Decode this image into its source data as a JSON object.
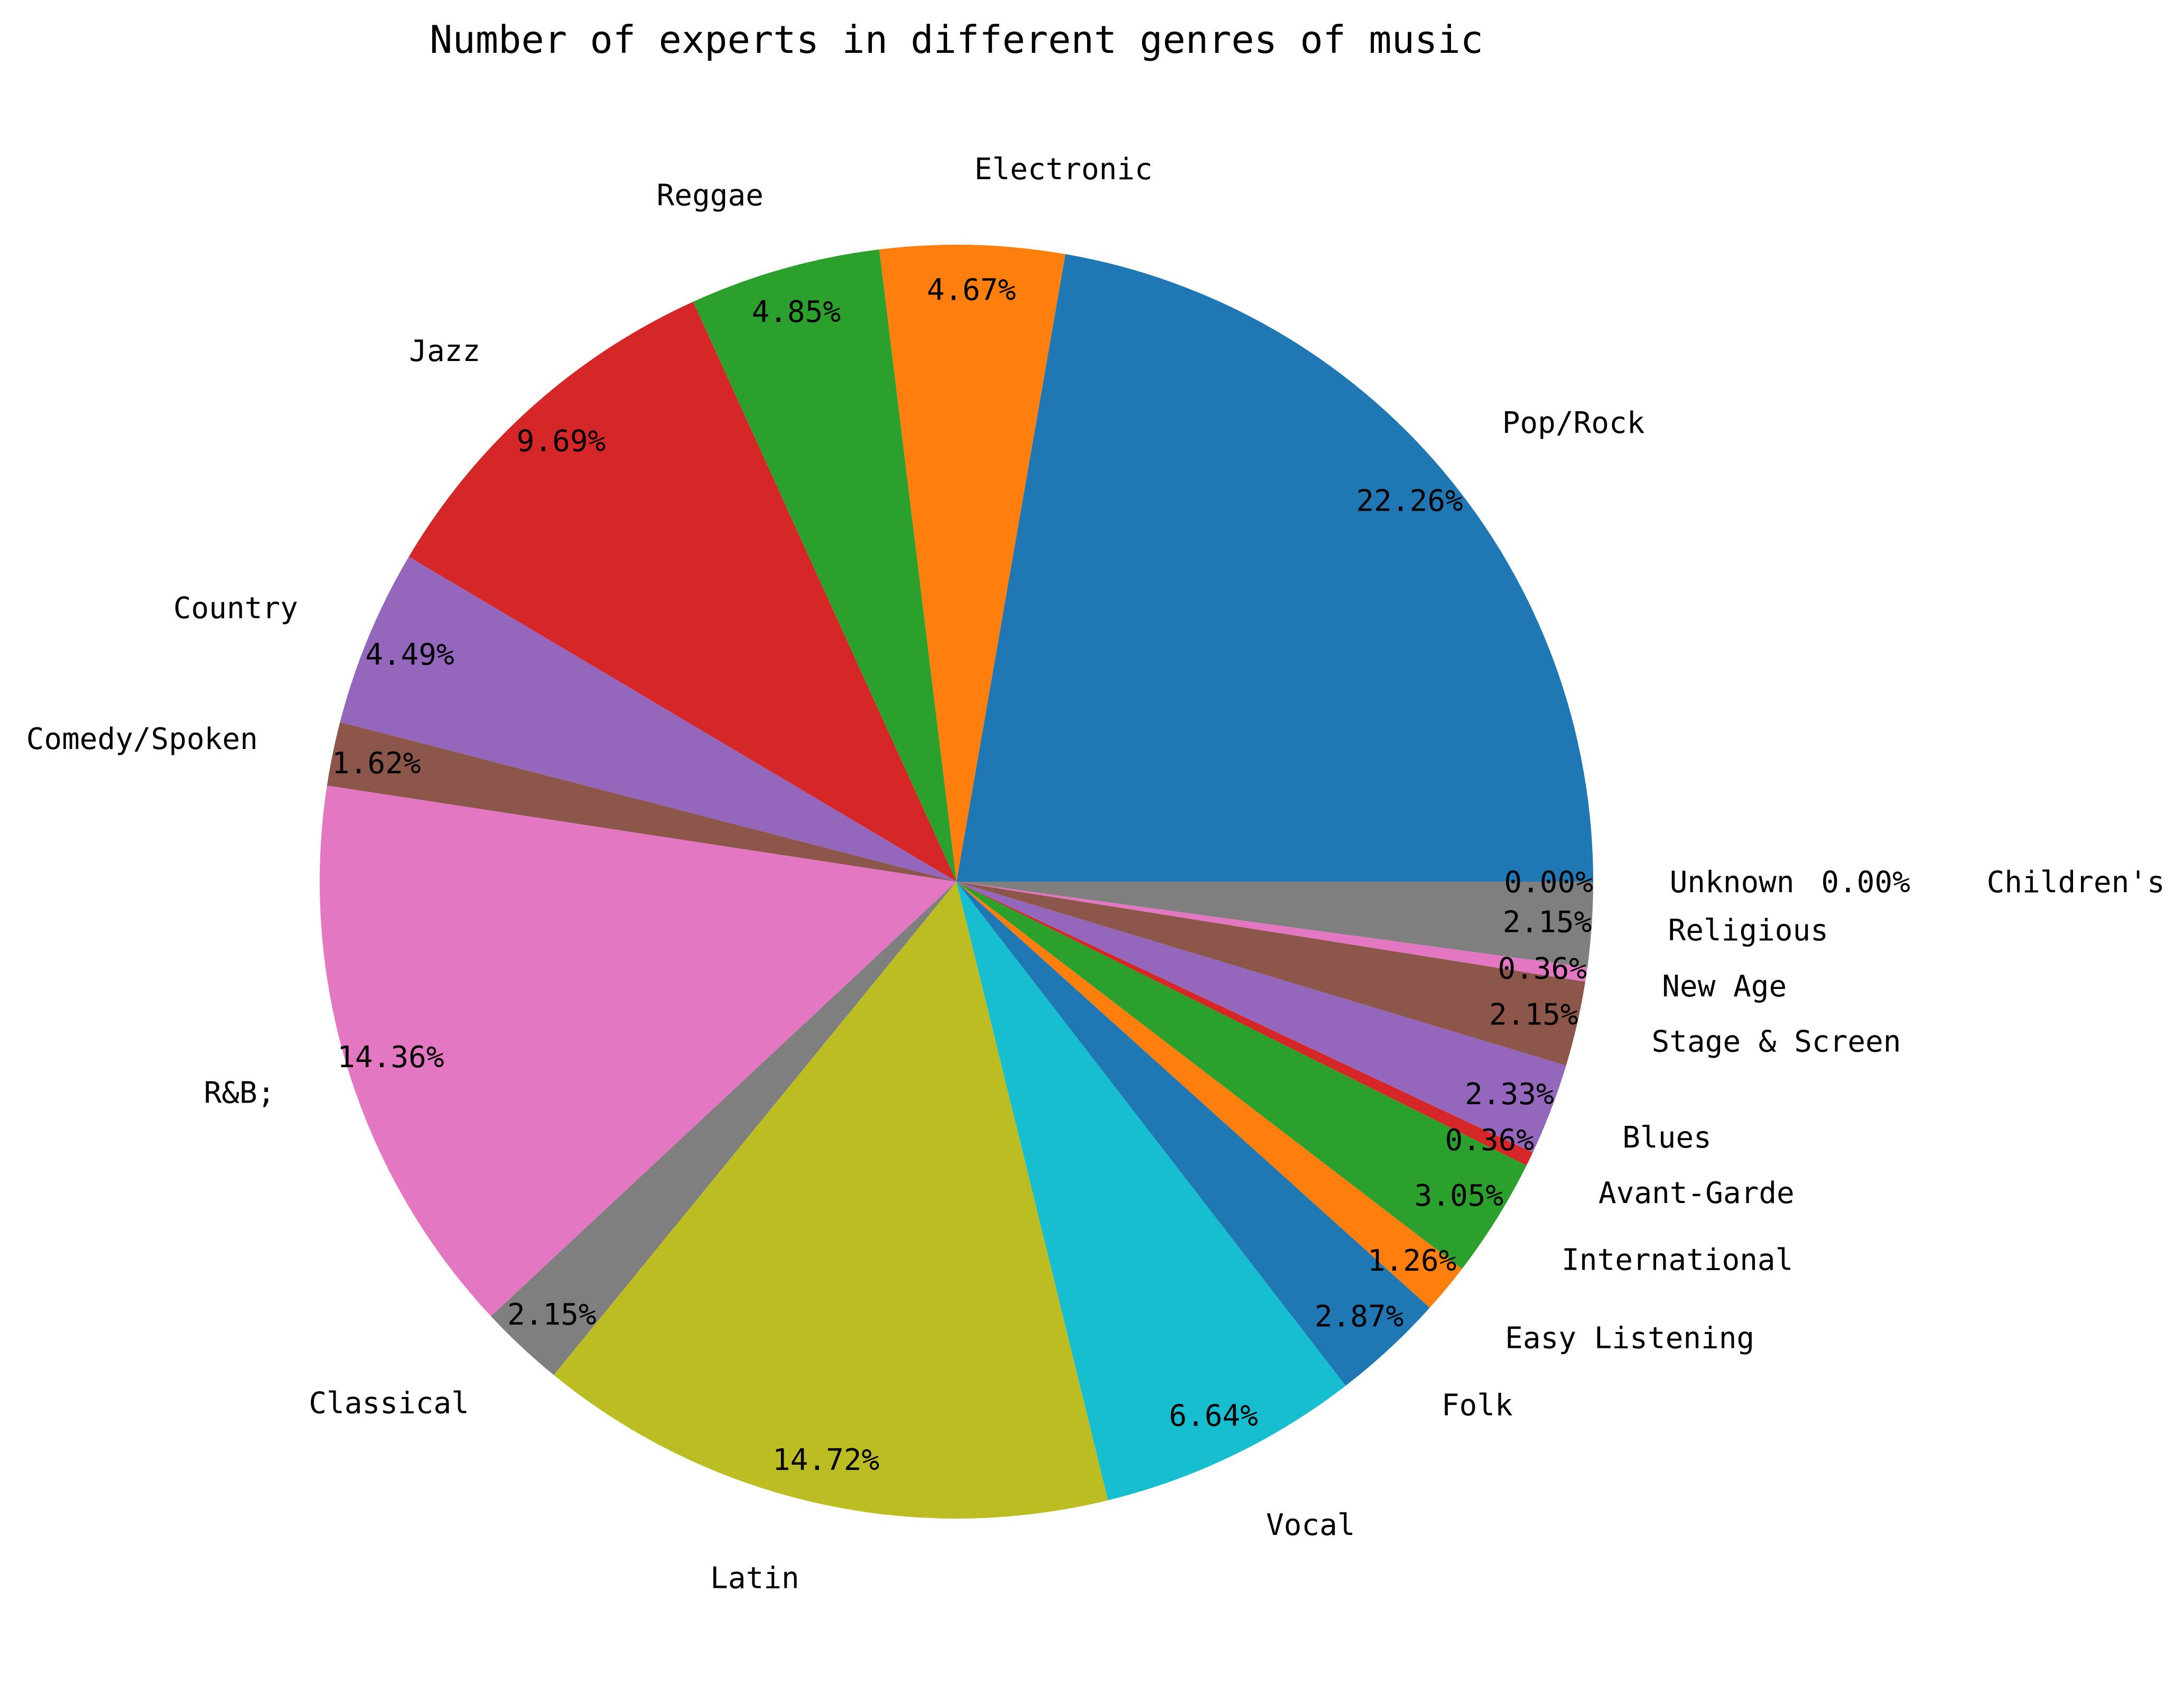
{
  "chart_data": {
    "type": "pie",
    "title": "Number of experts in different genres of music",
    "start_angle_deg": 0,
    "direction": "counterclockwise",
    "slices": [
      {
        "label": "Pop/Rock",
        "value": 22.26,
        "pct_text": "22.26%",
        "color": "#1f77b4"
      },
      {
        "label": "Electronic",
        "value": 4.67,
        "pct_text": "4.67%",
        "color": "#ff7f0e"
      },
      {
        "label": "Reggae",
        "value": 4.85,
        "pct_text": "4.85%",
        "color": "#2ca02c"
      },
      {
        "label": "Jazz",
        "value": 9.69,
        "pct_text": "9.69%",
        "color": "#d62728"
      },
      {
        "label": "Country",
        "value": 4.49,
        "pct_text": "4.49%",
        "color": "#9467bd"
      },
      {
        "label": "Comedy/Spoken",
        "value": 1.62,
        "pct_text": "1.62%",
        "color": "#8c564b"
      },
      {
        "label": "R&B;",
        "value": 14.36,
        "pct_text": "14.36%",
        "color": "#e377c2"
      },
      {
        "label": "Classical",
        "value": 2.15,
        "pct_text": "2.15%",
        "color": "#7f7f7f"
      },
      {
        "label": "Latin",
        "value": 14.72,
        "pct_text": "14.72%",
        "color": "#bcbd22"
      },
      {
        "label": "Vocal",
        "value": 6.64,
        "pct_text": "6.64%",
        "color": "#17becf"
      },
      {
        "label": "Folk",
        "value": 2.87,
        "pct_text": "2.87%",
        "color": "#1f77b4"
      },
      {
        "label": "Easy Listening",
        "value": 1.26,
        "pct_text": "1.26%",
        "color": "#ff7f0e"
      },
      {
        "label": "International",
        "value": 3.05,
        "pct_text": "3.05%",
        "color": "#2ca02c"
      },
      {
        "label": "Avant-Garde",
        "value": 0.36,
        "pct_text": "0.36%",
        "color": "#d62728"
      },
      {
        "label": "Blues",
        "value": 2.33,
        "pct_text": "2.33%",
        "color": "#9467bd"
      },
      {
        "label": "Stage & Screen",
        "value": 2.15,
        "pct_text": "2.15%",
        "color": "#8c564b"
      },
      {
        "label": "New Age",
        "value": 0.36,
        "pct_text": "0.36%",
        "color": "#e377c2"
      },
      {
        "label": "Religious",
        "value": 2.15,
        "pct_text": "2.15%",
        "color": "#7f7f7f"
      },
      {
        "label": "Unknown",
        "value": 0.0,
        "pct_text": "0.00%",
        "color": "#bcbd22"
      },
      {
        "label": "Children's",
        "value": 0.0,
        "pct_text": "0.00%",
        "color": "#17becf"
      }
    ]
  }
}
